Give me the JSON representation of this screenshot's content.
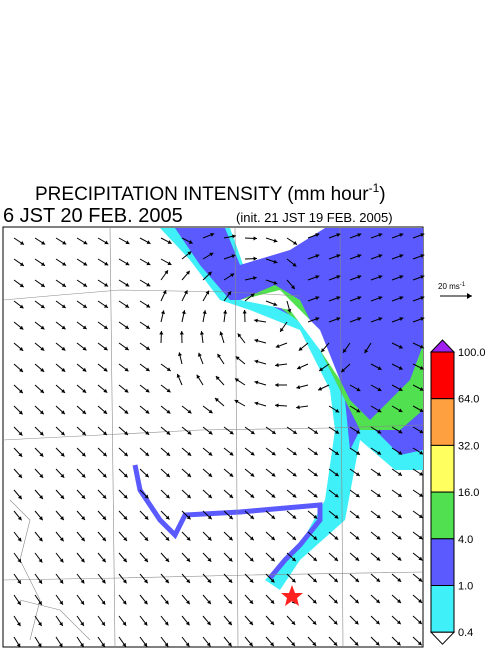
{
  "header": {
    "title": "PRECIPITATION INTENSITY (mm hour",
    "title_sup": "-1",
    "title_end": ")",
    "valid_time": "6 JST 20 FEB. 2005",
    "init": "(init. 21 JST 19 FEB. 2005)"
  },
  "wind_scale": {
    "label": "20 ms",
    "label_sup": "-1"
  },
  "colorbar": {
    "labels": [
      "100.0",
      "64.0",
      "32.0",
      "16.0",
      "4.0",
      "1.0",
      "0.4"
    ],
    "colors": [
      "#a020f0",
      "#ff0000",
      "#ffa040",
      "#ffff60",
      "#50e050",
      "#5a5aff",
      "#40f0f8",
      "#ffffff"
    ]
  }
}
